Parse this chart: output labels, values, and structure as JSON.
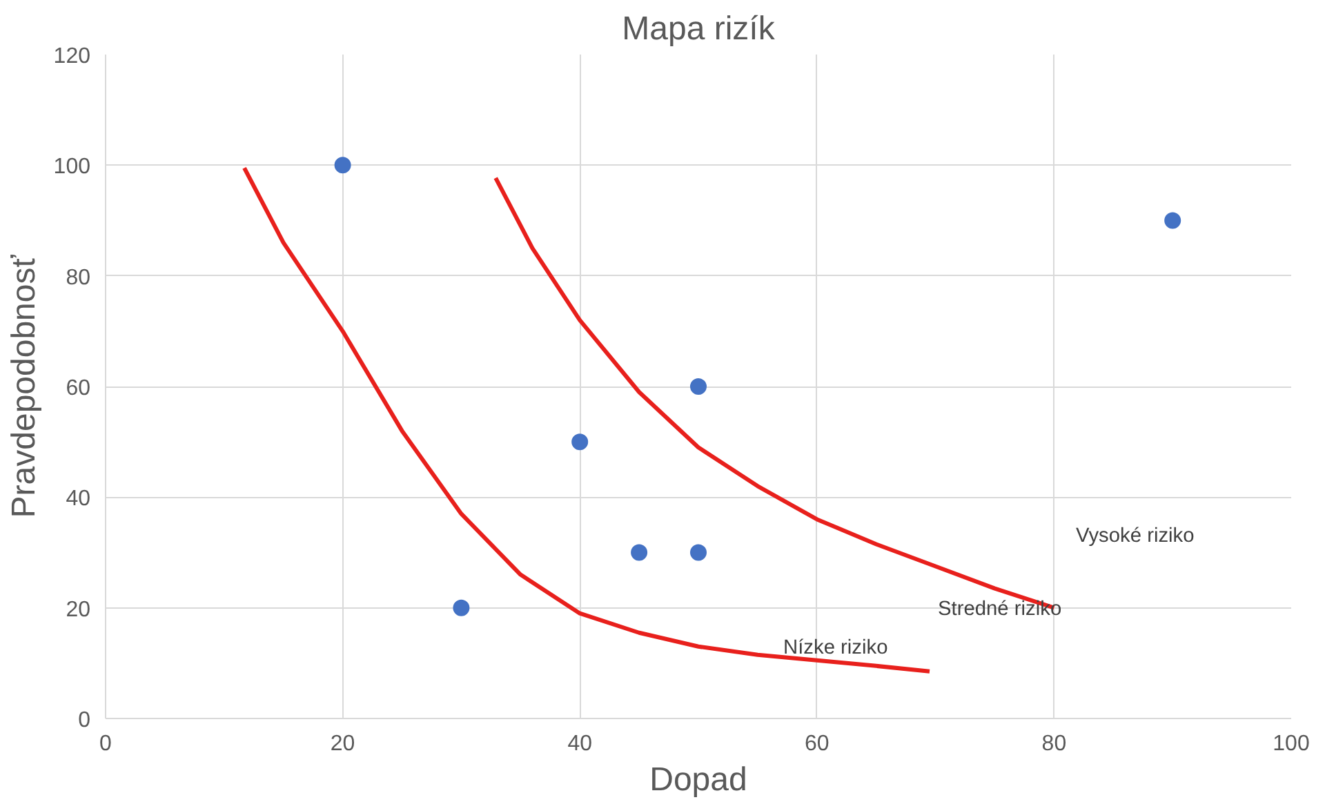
{
  "chart_data": {
    "type": "scatter",
    "title": "Mapa rizík",
    "xlabel": "Dopad",
    "ylabel": "Pravdepodobnosť",
    "xlim": [
      0,
      100
    ],
    "xticks": [
      0,
      20,
      40,
      60,
      80,
      100
    ],
    "ylim": [
      0,
      120
    ],
    "yticks": [
      0,
      20,
      40,
      60,
      80,
      100,
      120
    ],
    "grid": true,
    "series": [
      {
        "marker": "circle",
        "color": "#4472c4",
        "x": [
          20,
          30,
          40,
          45,
          50,
          50,
          90
        ],
        "values": [
          100,
          20,
          50,
          30,
          30,
          60,
          90
        ]
      },
      {
        "type": "line",
        "color": "#e8201c",
        "x": [
          11.7,
          15,
          20,
          25,
          30,
          35,
          40,
          45,
          50,
          55,
          60,
          65,
          69.5
        ],
        "values": [
          99.5,
          86,
          70,
          52,
          37,
          26,
          19,
          15.5,
          13,
          11.5,
          10.5,
          9.5,
          8.5
        ]
      },
      {
        "type": "line",
        "color": "#e8201c",
        "x": [
          32.9,
          36,
          40,
          45,
          50,
          55,
          60,
          65,
          70,
          75,
          80
        ],
        "values": [
          97.7,
          85,
          72,
          59,
          49,
          42,
          36,
          31.5,
          27.5,
          23.5,
          20
        ]
      }
    ],
    "annotations": [
      "Vysoké riziko",
      "Stredné riziko",
      "Nízke riziko"
    ]
  }
}
